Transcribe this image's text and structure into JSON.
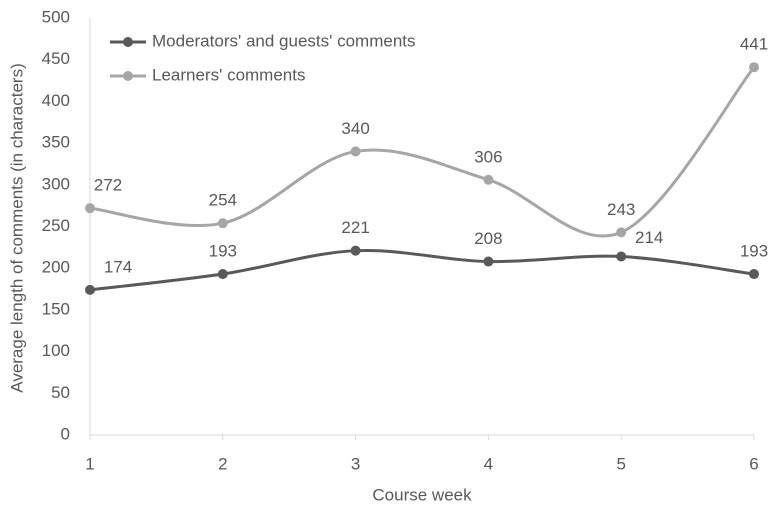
{
  "chart_data": {
    "type": "line",
    "x": [
      1,
      2,
      3,
      4,
      5,
      6
    ],
    "series": [
      {
        "name": "Moderators' and guests' comments",
        "color": "#595959",
        "values": [
          174,
          193,
          221,
          208,
          214,
          193
        ]
      },
      {
        "name": "Learners' comments",
        "color": "#a6a6a6",
        "values": [
          272,
          254,
          340,
          306,
          243,
          441
        ]
      }
    ],
    "xlim": [
      1,
      6
    ],
    "xticks": [
      1,
      2,
      3,
      4,
      5,
      6
    ],
    "ylim": [
      0,
      500
    ],
    "yticks": [
      0,
      50,
      100,
      150,
      200,
      250,
      300,
      350,
      400,
      450,
      500
    ],
    "xlabel": "Course week",
    "ylabel": "Average length of comments (in characters)",
    "smooth": true,
    "grid": false,
    "legend": "upper left"
  }
}
